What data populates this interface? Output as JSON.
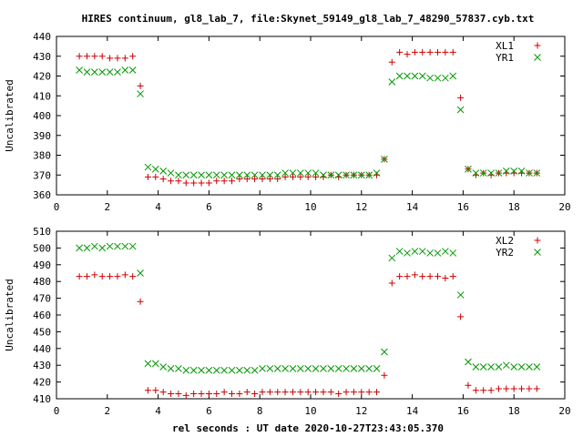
{
  "title": "HIRES continuum, gl8_lab_7, file:Skynet_59149_gl8_lab_7_48290_57837.cyb.txt",
  "xlabel": "rel seconds : UT date 2020-10-27T23:43:05.370",
  "colors": {
    "series_a": "#cc0000",
    "series_b": "#009900",
    "axis": "#000000"
  },
  "chart_data": [
    {
      "type": "scatter",
      "ylabel": "Uncalibrated",
      "xlim": [
        0,
        20
      ],
      "ylim": [
        360,
        440
      ],
      "xticks": [
        "0",
        "2",
        "4",
        "6",
        "8",
        "10",
        "12",
        "14",
        "16",
        "18",
        "20"
      ],
      "yticks": [
        "360",
        "370",
        "380",
        "390",
        "400",
        "410",
        "420",
        "430",
        "440"
      ],
      "legend_position": "top-right",
      "x": [
        0.9,
        1.2,
        1.5,
        1.8,
        2.1,
        2.4,
        2.7,
        3.0,
        3.3,
        3.6,
        3.9,
        4.2,
        4.5,
        4.8,
        5.1,
        5.4,
        5.7,
        6.0,
        6.3,
        6.6,
        6.9,
        7.2,
        7.5,
        7.8,
        8.1,
        8.4,
        8.7,
        9.0,
        9.3,
        9.6,
        9.9,
        10.2,
        10.5,
        10.8,
        11.1,
        11.4,
        11.7,
        12.0,
        12.3,
        12.6,
        12.9,
        13.2,
        13.5,
        13.8,
        14.1,
        14.4,
        14.7,
        15.0,
        15.3,
        15.6,
        15.9,
        16.2,
        16.5,
        16.8,
        17.1,
        17.4,
        17.7,
        18.0,
        18.3,
        18.6,
        18.9
      ],
      "series": [
        {
          "name": "XL1",
          "marker": "plus",
          "values": [
            430,
            430,
            430,
            430,
            429,
            429,
            429,
            430,
            415,
            369,
            369,
            368,
            367,
            367,
            366,
            366,
            366,
            366,
            367,
            367,
            367,
            368,
            368,
            368,
            368,
            368,
            368,
            369,
            369,
            369,
            369,
            369,
            369,
            370,
            369,
            370,
            370,
            370,
            370,
            370,
            378,
            427,
            432,
            431,
            432,
            432,
            432,
            432,
            432,
            432,
            409,
            373,
            370,
            371,
            370,
            371,
            371,
            371,
            371,
            371,
            371
          ]
        },
        {
          "name": "YR1",
          "marker": "cross",
          "values": [
            423,
            422,
            422,
            422,
            422,
            422,
            423,
            423,
            411,
            374,
            373,
            372,
            371,
            370,
            370,
            370,
            370,
            370,
            370,
            370,
            370,
            370,
            370,
            370,
            370,
            370,
            370,
            371,
            371,
            371,
            371,
            371,
            370,
            370,
            370,
            370,
            370,
            370,
            370,
            371,
            378,
            417,
            420,
            420,
            420,
            420,
            419,
            419,
            419,
            420,
            403,
            373,
            371,
            371,
            371,
            371,
            372,
            372,
            372,
            371,
            371
          ]
        }
      ]
    },
    {
      "type": "scatter",
      "ylabel": "Uncalibrated",
      "xlim": [
        0,
        20
      ],
      "ylim": [
        410,
        510
      ],
      "xticks": [
        "0",
        "2",
        "4",
        "6",
        "8",
        "10",
        "12",
        "14",
        "16",
        "18",
        "20"
      ],
      "yticks": [
        "410",
        "420",
        "430",
        "440",
        "450",
        "460",
        "470",
        "480",
        "490",
        "500",
        "510"
      ],
      "legend_position": "top-right",
      "x": [
        0.9,
        1.2,
        1.5,
        1.8,
        2.1,
        2.4,
        2.7,
        3.0,
        3.3,
        3.6,
        3.9,
        4.2,
        4.5,
        4.8,
        5.1,
        5.4,
        5.7,
        6.0,
        6.3,
        6.6,
        6.9,
        7.2,
        7.5,
        7.8,
        8.1,
        8.4,
        8.7,
        9.0,
        9.3,
        9.6,
        9.9,
        10.2,
        10.5,
        10.8,
        11.1,
        11.4,
        11.7,
        12.0,
        12.3,
        12.6,
        12.9,
        13.2,
        13.5,
        13.8,
        14.1,
        14.4,
        14.7,
        15.0,
        15.3,
        15.6,
        15.9,
        16.2,
        16.5,
        16.8,
        17.1,
        17.4,
        17.7,
        18.0,
        18.3,
        18.6,
        18.9
      ],
      "series": [
        {
          "name": "XL2",
          "marker": "plus",
          "values": [
            483,
            483,
            484,
            483,
            483,
            483,
            484,
            483,
            468,
            415,
            415,
            414,
            413,
            413,
            412,
            413,
            413,
            413,
            413,
            414,
            413,
            413,
            414,
            413,
            414,
            414,
            414,
            414,
            414,
            414,
            414,
            414,
            414,
            414,
            413,
            414,
            414,
            414,
            414,
            414,
            424,
            479,
            483,
            483,
            484,
            483,
            483,
            483,
            482,
            483,
            459,
            418,
            415,
            415,
            415,
            416,
            416,
            416,
            416,
            416,
            416
          ]
        },
        {
          "name": "YR2",
          "marker": "cross",
          "values": [
            500,
            500,
            501,
            500,
            501,
            501,
            501,
            501,
            485,
            431,
            431,
            429,
            428,
            428,
            427,
            427,
            427,
            427,
            427,
            427,
            427,
            427,
            427,
            427,
            428,
            428,
            428,
            428,
            428,
            428,
            428,
            428,
            428,
            428,
            428,
            428,
            428,
            428,
            428,
            428,
            438,
            494,
            498,
            497,
            498,
            498,
            497,
            497,
            498,
            497,
            472,
            432,
            429,
            429,
            429,
            429,
            430,
            429,
            429,
            429,
            429
          ]
        }
      ]
    }
  ]
}
